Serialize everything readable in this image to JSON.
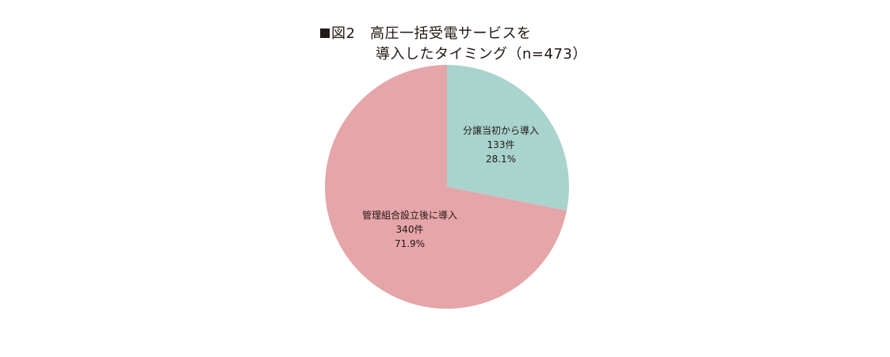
{
  "title": {
    "figure_label": "図2",
    "line1": "高圧一括受電サービスを",
    "line2": "導入したタイミング（n=473）"
  },
  "chart_data": {
    "type": "pie",
    "n": 473,
    "start_angle_deg": 0,
    "direction": "clockwise",
    "slices": [
      {
        "name": "分譲当初から導入",
        "count": 133,
        "count_label": "133件",
        "percent": 28.1,
        "percent_label": "28.1%",
        "color": "#a9d3cd"
      },
      {
        "name": "管理組合設立後に導入",
        "count": 340,
        "count_label": "340件",
        "percent": 71.9,
        "percent_label": "71.9%",
        "color": "#e6a5a8"
      }
    ]
  }
}
